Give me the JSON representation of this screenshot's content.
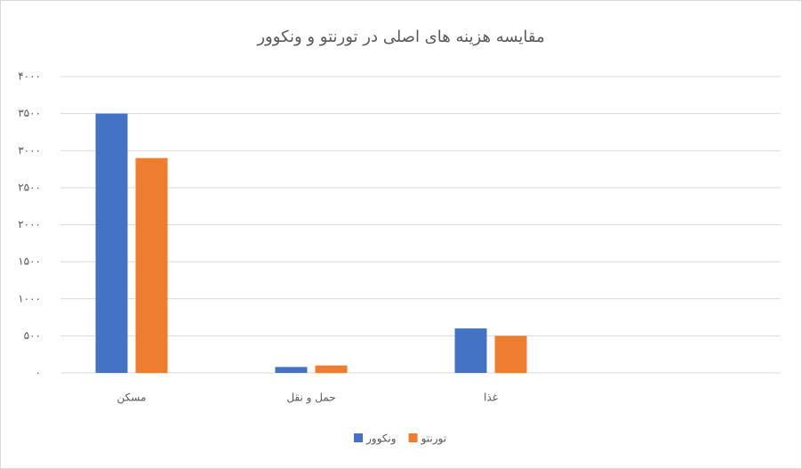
{
  "chart_data": {
    "type": "bar",
    "title": "مقایسه هزینه های اصلی در تورنتو و ونکوور",
    "categories": [
      "مسکن",
      "حمل و نقل",
      "غذا",
      null
    ],
    "series": [
      {
        "name": "ونکوور",
        "color": "#4472c4",
        "values": [
          3500,
          80,
          600,
          null
        ]
      },
      {
        "name": "تورنتو",
        "color": "#ed7d31",
        "values": [
          2900,
          100,
          500,
          null
        ]
      }
    ],
    "ylim": [
      0,
      4000
    ],
    "yticks": [
      {
        "value": 0,
        "label": "۰"
      },
      {
        "value": 500,
        "label": "۵۰۰"
      },
      {
        "value": 1000,
        "label": "۱۰۰۰"
      },
      {
        "value": 1500,
        "label": "۱۵۰۰"
      },
      {
        "value": 2000,
        "label": "۲۰۰۰"
      },
      {
        "value": 2500,
        "label": "۲۵۰۰"
      },
      {
        "value": 3000,
        "label": "۳۰۰۰"
      },
      {
        "value": 3500,
        "label": "۳۵۰۰"
      },
      {
        "value": 4000,
        "label": "۴۰۰۰"
      }
    ],
    "grid": true,
    "legend": "bottom"
  }
}
